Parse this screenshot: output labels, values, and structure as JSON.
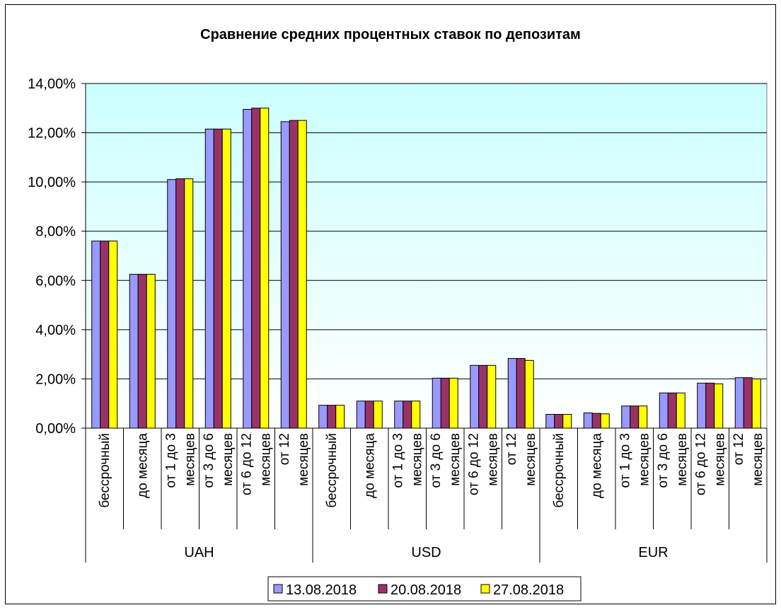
{
  "chart_data": {
    "type": "bar",
    "title": "Сравнение средних процентных ставок по депозитам",
    "xlabel": "",
    "ylabel": "",
    "ylim": [
      0,
      14
    ],
    "yticks": [
      "0,00%",
      "2,00%",
      "4,00%",
      "6,00%",
      "8,00%",
      "10,00%",
      "12,00%",
      "14,00%"
    ],
    "grid": true,
    "legend_position": "bottom",
    "groups": [
      {
        "name": "UAH",
        "categories": [
          [
            "бессрочный"
          ],
          [
            "до месяца"
          ],
          [
            "от 1 до 3",
            "месяцев"
          ],
          [
            "от 3 до 6",
            "месяцев"
          ],
          [
            "от 6 до 12",
            "месяцев"
          ],
          [
            "от 12",
            "месяцев"
          ]
        ]
      },
      {
        "name": "USD",
        "categories": [
          [
            "бессрочный"
          ],
          [
            "до месяца"
          ],
          [
            "от 1 до 3",
            "месяцев"
          ],
          [
            "от 3 до 6",
            "месяцев"
          ],
          [
            "от 6 до 12",
            "месяцев"
          ],
          [
            "от 12",
            "месяцев"
          ]
        ]
      },
      {
        "name": "EUR",
        "categories": [
          [
            "бессрочный"
          ],
          [
            "до месяца"
          ],
          [
            "от 1 до 3",
            "месяцев"
          ],
          [
            "от 3 до 6",
            "месяцев"
          ],
          [
            "от 6 до 12",
            "месяцев"
          ],
          [
            "от 12",
            "месяцев"
          ]
        ]
      }
    ],
    "series": [
      {
        "name": "13.08.2018",
        "color": "#9999ff",
        "values": [
          7.6,
          6.25,
          10.1,
          12.15,
          12.95,
          12.45,
          0.93,
          1.1,
          1.1,
          2.03,
          2.55,
          2.83,
          0.56,
          0.62,
          0.9,
          1.43,
          1.83,
          2.05
        ]
      },
      {
        "name": "20.08.2018",
        "color": "#993366",
        "values": [
          7.6,
          6.25,
          10.13,
          12.15,
          13.0,
          12.5,
          0.93,
          1.1,
          1.1,
          2.03,
          2.55,
          2.83,
          0.56,
          0.6,
          0.9,
          1.43,
          1.83,
          2.05
        ]
      },
      {
        "name": "27.08.2018",
        "color": "#ffff00",
        "values": [
          7.6,
          6.25,
          10.13,
          12.15,
          13.0,
          12.5,
          0.93,
          1.1,
          1.1,
          2.03,
          2.55,
          2.75,
          0.56,
          0.58,
          0.9,
          1.43,
          1.8,
          2.0
        ]
      }
    ],
    "colors": {
      "plot_top": "#ccffff",
      "plot_bottom": "#ffffff",
      "axis": "#000000",
      "grid": "#000000"
    }
  }
}
